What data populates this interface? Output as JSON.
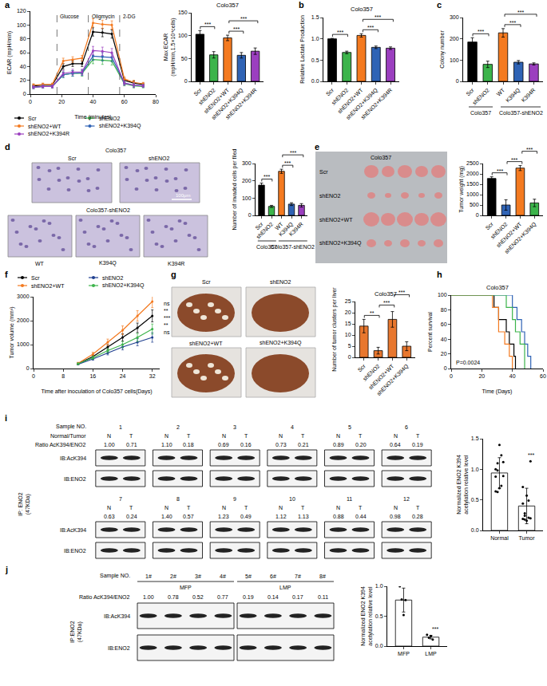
{
  "chart_data": [
    {
      "panel": "a",
      "type": "line",
      "x_label": "Time (minutes)",
      "y_label": "ECAR (mpH/min)",
      "x": [
        2,
        8,
        14,
        21,
        27,
        33,
        40,
        46,
        52,
        60,
        66,
        72
      ],
      "xlim": [
        0,
        80
      ],
      "xticks": [
        0,
        20,
        40,
        60,
        80
      ],
      "ylim": [
        0,
        120
      ],
      "yticks": [
        0,
        20,
        40,
        60,
        80,
        100,
        120
      ],
      "injections": [
        {
          "x": 17,
          "label": "Glucose"
        },
        {
          "x": 37,
          "label": "Oligmycin"
        },
        {
          "x": 57,
          "label": "2-DG"
        }
      ],
      "legend": "bottom",
      "series": [
        {
          "name": "Scr",
          "color": "#000000",
          "values": [
            12,
            13,
            13,
            40,
            44,
            44,
            90,
            89,
            87,
            20,
            16,
            14
          ],
          "errors": [
            2,
            2,
            2,
            4,
            4,
            4,
            6,
            6,
            6,
            3,
            3,
            2
          ]
        },
        {
          "name": "shENO2",
          "color": "#3cb44b",
          "values": [
            10,
            11,
            11,
            28,
            30,
            30,
            50,
            49,
            48,
            15,
            12,
            11
          ],
          "errors": [
            2,
            2,
            2,
            4,
            4,
            4,
            6,
            6,
            6,
            3,
            3,
            2
          ]
        },
        {
          "name": "shENO2+WT",
          "color": "#f47a20",
          "values": [
            13,
            14,
            14,
            48,
            50,
            52,
            103,
            101,
            100,
            22,
            17,
            15
          ],
          "errors": [
            2,
            2,
            2,
            4,
            4,
            4,
            6,
            6,
            6,
            3,
            3,
            2
          ]
        },
        {
          "name": "shENO2+K394Q",
          "color": "#2f63b5",
          "values": [
            10,
            11,
            11,
            28,
            30,
            31,
            55,
            54,
            53,
            16,
            13,
            12
          ],
          "errors": [
            2,
            2,
            2,
            4,
            4,
            4,
            6,
            6,
            6,
            3,
            3,
            2
          ]
        },
        {
          "name": "shENO2+K394R",
          "color": "#9b3fbf",
          "values": [
            10,
            11,
            11,
            30,
            32,
            32,
            63,
            62,
            60,
            16,
            13,
            12
          ],
          "errors": [
            2,
            2,
            2,
            4,
            4,
            4,
            6,
            6,
            6,
            3,
            3,
            2
          ]
        }
      ]
    },
    {
      "type": "bar",
      "title": "Colo357",
      "y_label": [
        "Max ECAR",
        "(mpH/min,1.5×10⁴cells)"
      ],
      "categories": [
        "Scr",
        "shENO2",
        "shENO2+WT",
        "shENO2+K394Q",
        "shENO2+K394R"
      ],
      "values": [
        103,
        58,
        95,
        57,
        66
      ],
      "errors": [
        8,
        7,
        6,
        6,
        7
      ],
      "colors": [
        "#000000",
        "#3cb44b",
        "#f47a20",
        "#2f63b5",
        "#9b3fbf"
      ],
      "ylim": [
        0,
        150
      ],
      "yticks": [
        0,
        50,
        100,
        150
      ],
      "significance": [
        {
          "from": 0,
          "to": 1,
          "text": "***"
        },
        {
          "from": 2,
          "to": 3,
          "text": "***"
        },
        {
          "from": 2,
          "to": 4,
          "text": "***"
        }
      ]
    },
    {
      "panel": "b",
      "type": "bar",
      "title": "Colo357",
      "y_label": "Relative Lactate Production",
      "categories": [
        "Scr",
        "shENO2",
        "shENO2+WT",
        "shENO2+K394Q",
        "shENO2+K394R"
      ],
      "values": [
        1.0,
        0.68,
        1.08,
        0.8,
        0.78
      ],
      "errors": [
        0.01,
        0.03,
        0.04,
        0.03,
        0.03
      ],
      "colors": [
        "#000000",
        "#3cb44b",
        "#f47a20",
        "#2f63b5",
        "#9b3fbf"
      ],
      "ylim": [
        0,
        1.5
      ],
      "yticks": [
        {
          "value": 0,
          "label": "0.0"
        },
        0.5,
        {
          "value": 1,
          "label": "1.0"
        },
        0.5,
        {
          "value": 1.5,
          "label": "1.5"
        }
      ],
      "significance": [
        {
          "from": 0,
          "to": 1,
          "text": "***"
        },
        {
          "from": 2,
          "to": 3,
          "text": "***"
        },
        {
          "from": 2,
          "to": 4,
          "text": "***"
        }
      ]
    },
    {
      "panel": "c",
      "type": "bar",
      "y_label": "Colony number",
      "categories": [
        "Scr",
        "shENO2",
        "WT",
        "K394Q",
        "K394R"
      ],
      "values": [
        185,
        80,
        228,
        90,
        82
      ],
      "errors": [
        20,
        15,
        20,
        8,
        5
      ],
      "colors": [
        "#000000",
        "#3cb44b",
        "#f47a20",
        "#2f63b5",
        "#9b3fbf"
      ],
      "ylim": [
        0,
        300
      ],
      "yticks": [
        0,
        100,
        200,
        300
      ],
      "groups": [
        {
          "from": 0,
          "to": 1,
          "label": "Colo357"
        },
        {
          "from": 2,
          "to": 4,
          "label": "Colo357-shENO2"
        }
      ],
      "significance": [
        {
          "from": 0,
          "to": 1,
          "text": "***"
        },
        {
          "from": 2,
          "to": 3,
          "text": "***"
        },
        {
          "from": 2,
          "to": 4,
          "text": "***"
        }
      ]
    },
    {
      "panel": "d",
      "type": "bar",
      "y_label": "Number of invaded cells per filed",
      "categories": [
        "Scr",
        "shENO2",
        "WT",
        "K394Q",
        "K394R"
      ],
      "values": [
        175,
        52,
        255,
        65,
        58
      ],
      "errors": [
        12,
        6,
        12,
        8,
        10
      ],
      "colors": [
        "#000000",
        "#3cb44b",
        "#f47a20",
        "#2f63b5",
        "#9b3fbf"
      ],
      "ylim": [
        0,
        300
      ],
      "yticks": [
        0,
        100,
        200,
        300
      ],
      "groups": [
        {
          "from": 0,
          "to": 1,
          "label": "Colo357"
        },
        {
          "from": 2,
          "to": 4,
          "label": "Colo357-shENO2"
        }
      ],
      "significance": [
        {
          "from": 0,
          "to": 1,
          "text": "***"
        },
        {
          "from": 2,
          "to": 3,
          "text": "***"
        },
        {
          "from": 2,
          "to": 4,
          "text": "***"
        }
      ]
    },
    {
      "panel": "e",
      "type": "bar",
      "y_label": "Tumor weight (mg)",
      "categories": [
        "Scr",
        "shENO2",
        "shENO2+WT",
        "shENO2+K394Q"
      ],
      "values": [
        1780,
        500,
        2280,
        600
      ],
      "errors": [
        80,
        250,
        120,
        180
      ],
      "colors": [
        "#000000",
        "#2f63b5",
        "#f47a20",
        "#3cb44b"
      ],
      "ylim": [
        0,
        2500
      ],
      "yticks": [
        0,
        500,
        1000,
        1500,
        2000,
        2500
      ],
      "significance": [
        {
          "from": 0,
          "to": 1,
          "text": "***"
        },
        {
          "from": 1,
          "to": 2,
          "text": "***"
        },
        {
          "from": 2,
          "to": 3,
          "text": "***"
        }
      ]
    },
    {
      "panel": "f",
      "type": "line",
      "x_label": "Time after inoculation of Colo357 cells(Days)",
      "y_label": "Tumor volume (mm³)",
      "x": [
        12,
        16,
        20,
        24,
        28,
        32
      ],
      "xlim": [
        0,
        34
      ],
      "xticks": [
        0,
        8,
        16,
        24,
        32
      ],
      "ylim": [
        0,
        3000
      ],
      "yticks": [
        0,
        1000,
        2000,
        3000
      ],
      "legend": "top",
      "significance_labels": [
        "ns",
        "**",
        "***",
        "**",
        "ns"
      ],
      "series": [
        {
          "name": "Scr",
          "color": "#000000",
          "values": [
            200,
            500,
            900,
            1300,
            1700,
            2200
          ],
          "errors": [
            30,
            60,
            100,
            150,
            200,
            250
          ]
        },
        {
          "name": "shENO2",
          "color": "#1f3f8f",
          "values": [
            180,
            400,
            650,
            900,
            1100,
            1300
          ],
          "errors": [
            30,
            50,
            80,
            120,
            150,
            200
          ]
        },
        {
          "name": "shENO2+WT",
          "color": "#f47a20",
          "values": [
            220,
            600,
            1100,
            1600,
            2200,
            2800
          ],
          "errors": [
            40,
            80,
            130,
            180,
            220,
            260
          ]
        },
        {
          "name": "shENO2+K394Q",
          "color": "#3cb44b",
          "values": [
            200,
            450,
            750,
            1000,
            1300,
            1650
          ],
          "errors": [
            30,
            60,
            90,
            130,
            170,
            210
          ]
        }
      ]
    },
    {
      "panel": "g",
      "type": "bar",
      "title": "Colo357",
      "y_label": "Number of tumor clusters per liver",
      "categories": [
        "Scr",
        "shENO2",
        "shENO2+WT",
        "shENO2+K394Q"
      ],
      "values": [
        14,
        3,
        17,
        5
      ],
      "errors": [
        3,
        1.5,
        3.5,
        2
      ],
      "colors": [
        "#e8772e",
        "#e8772e",
        "#e8772e",
        "#e8772e"
      ],
      "ylim": [
        0,
        25
      ],
      "yticks": [
        0,
        5,
        10,
        15,
        20,
        25
      ],
      "significance": [
        {
          "from": 0,
          "to": 1,
          "text": "**"
        },
        {
          "from": 1,
          "to": 2,
          "text": "***"
        },
        {
          "from": 2,
          "to": 3,
          "text": "***"
        }
      ]
    },
    {
      "panel": "h",
      "type": "line",
      "title": "Colo357",
      "x_label": "Time (Days)",
      "y_label": "Percent survival",
      "line_style": "step",
      "annotation": "P=0.0024",
      "xlim": [
        0,
        60
      ],
      "xticks": [
        0,
        20,
        40,
        60
      ],
      "ylim": [
        0,
        100
      ],
      "yticks": [
        0,
        20,
        40,
        60,
        80,
        100
      ],
      "series": [
        {
          "name": "Scr",
          "color": "#000000",
          "x": [
            0,
            28,
            31,
            36,
            38,
            41,
            42
          ],
          "values": [
            100,
            83.3,
            66.7,
            50,
            33.3,
            16.7,
            0
          ]
        },
        {
          "name": "shENO2",
          "color": "#2f63b5",
          "x": [
            0,
            40,
            43,
            46,
            48,
            50,
            52
          ],
          "values": [
            100,
            83.3,
            66.7,
            50,
            33.3,
            16.7,
            0
          ]
        },
        {
          "name": "shENO2+WT",
          "color": "#f47a20",
          "x": [
            0,
            27,
            31,
            35,
            38,
            40
          ],
          "values": [
            100,
            83.3,
            50,
            33.3,
            16.7,
            0
          ]
        },
        {
          "name": "shENO2+K394Q",
          "color": "#3cb44b",
          "x": [
            0,
            36,
            40,
            42,
            45,
            48
          ],
          "values": [
            100,
            83.3,
            66.7,
            50,
            33.3,
            0
          ]
        }
      ]
    },
    {
      "panel": "i",
      "type": "bar",
      "y_label": [
        "Normalized ENO2 K394",
        "acetylation relative level"
      ],
      "categories": [
        "Normal",
        "Tumor"
      ],
      "values": [
        0.94,
        0.4
      ],
      "errors": [
        0.25,
        0.29
      ],
      "colors": [
        "#ffffff",
        "#ffffff"
      ],
      "points": [
        [
          1.0,
          1.1,
          0.69,
          0.73,
          0.89,
          0.64,
          0.63,
          1.4,
          1.23,
          1.12,
          0.88,
          0.98
        ],
        [
          0.71,
          0.18,
          0.16,
          0.21,
          0.2,
          0.19,
          0.24,
          0.57,
          0.49,
          1.13,
          0.44,
          0.28
        ]
      ],
      "ylim": [
        0,
        1.5
      ],
      "yticks": [
        {
          "value": 0,
          "label": "0.0"
        },
        0.5,
        {
          "value": 1,
          "label": "1.0"
        },
        1.5
      ],
      "significance": [
        {
          "from": 1,
          "to": 1,
          "text": "***"
        }
      ]
    },
    {
      "panel": "j",
      "type": "bar",
      "y_label": [
        "Normalized ENO2 K394",
        "acetylation relative level"
      ],
      "categories": [
        "MFP",
        "LMP"
      ],
      "values": [
        0.77,
        0.15
      ],
      "errors": [
        0.2,
        0.03
      ],
      "colors": [
        "#ffffff",
        "#ffffff"
      ],
      "points": [
        [
          1.0,
          0.78,
          0.52,
          0.77
        ],
        [
          0.19,
          0.14,
          0.17,
          0.11
        ]
      ],
      "ylim": [
        0,
        1.0
      ],
      "yticks": [
        {
          "value": 0,
          "label": "0.0"
        },
        0.5,
        {
          "value": 1,
          "label": "1.0"
        }
      ],
      "significance": [
        {
          "from": 1,
          "to": 1,
          "text": "***"
        }
      ]
    }
  ],
  "images": {
    "d": {
      "top_title": "Colo357",
      "top": [
        "Scr",
        "shENO2"
      ],
      "bottom_title": "Colo357-shENO2",
      "bottom": [
        "WT",
        "K394Q",
        "K394R"
      ],
      "scale": "100μm"
    },
    "e": {
      "title": "Colo357",
      "rows": [
        "Scr",
        "shENO2",
        "shENO2+WT",
        "shENO2+K394Q"
      ]
    },
    "g": {
      "labels": [
        "Scr",
        "shENO2",
        "shENO2+WT",
        "shENO2+K394Q"
      ]
    },
    "i": {
      "sample_label": "Sample NO.",
      "pair_label": "Normal/Tumor",
      "ratio_label": "Ratio AcK394/ENO2",
      "ip_label": [
        "IP: ENO2",
        "(47KDa)"
      ],
      "ib_labels": [
        "IB:AcK394",
        "IB:ENO2"
      ],
      "lanes": [
        "N",
        "T"
      ],
      "samples": [
        {
          "no": "1",
          "ratios": [
            "1.00",
            "0.71"
          ]
        },
        {
          "no": "2",
          "ratios": [
            "1.10",
            "0.18"
          ]
        },
        {
          "no": "3",
          "ratios": [
            "0.69",
            "0.16"
          ]
        },
        {
          "no": "4",
          "ratios": [
            "0.73",
            "0.21"
          ]
        },
        {
          "no": "5",
          "ratios": [
            "0.89",
            "0.20"
          ]
        },
        {
          "no": "6",
          "ratios": [
            "0.64",
            "0.19"
          ]
        },
        {
          "no": "7",
          "ratios": [
            "0.63",
            "0.24"
          ]
        },
        {
          "no": "8",
          "ratios": [
            "1.40",
            "0.57"
          ]
        },
        {
          "no": "9",
          "ratios": [
            "1.23",
            "0.49"
          ]
        },
        {
          "no": "10",
          "ratios": [
            "1.12",
            "1.13"
          ]
        },
        {
          "no": "11",
          "ratios": [
            "0.88",
            "0.44"
          ]
        },
        {
          "no": "12",
          "ratios": [
            "0.98",
            "0.28"
          ]
        }
      ]
    },
    "j": {
      "sample_label": "Sample NO.",
      "ratio_label": "Ratio AcK394/ENO2",
      "ip_label": [
        "IP:ENO2",
        "(47KDa)"
      ],
      "ib_labels": [
        "IB:AcK394",
        "IB:ENO2"
      ],
      "groups": [
        {
          "label": "MFP",
          "from": 0,
          "to": 3
        },
        {
          "label": "LMP",
          "from": 4,
          "to": 7
        }
      ],
      "samples": [
        "1#",
        "2#",
        "3#",
        "4#",
        "5#",
        "6#",
        "7#",
        "8#"
      ],
      "ratios": [
        "1.00",
        "0.78",
        "0.52",
        "0.77",
        "0.19",
        "0.14",
        "0.17",
        "0.11"
      ]
    }
  }
}
